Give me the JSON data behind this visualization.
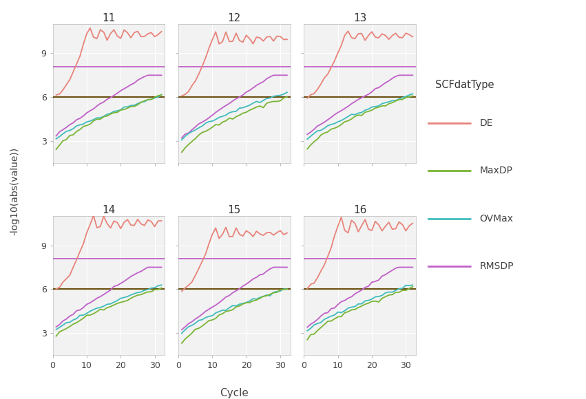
{
  "panels": [
    11,
    12,
    13,
    14,
    15,
    16
  ],
  "n_cycles": 32,
  "ylim": [
    1.5,
    11.0
  ],
  "yticks": [
    3,
    6,
    9
  ],
  "xticks": [
    0,
    10,
    20,
    30
  ],
  "xlabel": "Cycle",
  "ylabel": "-log10(abs(value))",
  "legend_title": "SCFdatType",
  "hline_dark": 6.0,
  "hline_purple": 8.1,
  "colors": {
    "DE": "#E8837A",
    "MaxDP": "#7AB434",
    "OVMax": "#40BCBC",
    "RMSDP": "#C060C8"
  },
  "legend_labels": [
    "DE",
    "MaxDP",
    "OVMax",
    "RMSDP"
  ],
  "background_color": "#FFFFFF",
  "panel_bg": "#F2F2F2",
  "grid_color": "#FFFFFF",
  "hline_dark_color": "#6B5010",
  "DE_data": {
    "panel_params": [
      {
        "start_cycle": 10,
        "peak": 10.3,
        "osc_amp": 0.5,
        "osc_freq": 1.8,
        "osc_decay": 0.06,
        "start_val": 6.0
      },
      {
        "start_cycle": 10,
        "peak": 10.0,
        "osc_amp": 0.6,
        "osc_freq": 2.0,
        "osc_decay": 0.07,
        "start_val": 6.0
      },
      {
        "start_cycle": 12,
        "peak": 10.2,
        "osc_amp": 0.4,
        "osc_freq": 1.8,
        "osc_decay": 0.06,
        "start_val": 6.0
      },
      {
        "start_cycle": 11,
        "peak": 10.5,
        "osc_amp": 0.55,
        "osc_freq": 1.9,
        "osc_decay": 0.05,
        "start_val": 6.0
      },
      {
        "start_cycle": 10,
        "peak": 9.8,
        "osc_amp": 0.5,
        "osc_freq": 2.0,
        "osc_decay": 0.07,
        "start_val": 5.8
      },
      {
        "start_cycle": 10,
        "peak": 10.3,
        "osc_amp": 0.6,
        "osc_freq": 1.8,
        "osc_decay": 0.04,
        "start_val": 6.0
      }
    ]
  },
  "MaxDP_data": {
    "panel_params": [
      {
        "start": 1.8,
        "end": 6.1,
        "power": 0.55
      },
      {
        "start": 1.6,
        "end": 6.0,
        "power": 0.55
      },
      {
        "start": 1.8,
        "end": 6.1,
        "power": 0.55
      },
      {
        "start": 2.4,
        "end": 6.1,
        "power": 0.65
      },
      {
        "start": 1.6,
        "end": 6.05,
        "power": 0.55
      },
      {
        "start": 1.9,
        "end": 6.1,
        "power": 0.55
      }
    ]
  },
  "OVMax_data": {
    "panel_params": [
      {
        "start": 2.85,
        "end": 6.1,
        "power": 0.7
      },
      {
        "start": 2.7,
        "end": 6.3,
        "power": 0.65
      },
      {
        "start": 2.85,
        "end": 6.2,
        "power": 0.7
      },
      {
        "start": 3.0,
        "end": 6.3,
        "power": 0.75
      },
      {
        "start": 2.7,
        "end": 6.0,
        "power": 0.65
      },
      {
        "start": 2.85,
        "end": 6.3,
        "power": 0.7
      }
    ]
  },
  "RMSDP_data": {
    "panel_params": [
      {
        "start": 3.2,
        "end": 8.1,
        "power": 0.9
      },
      {
        "start": 3.0,
        "end": 8.1,
        "power": 0.9
      },
      {
        "start": 3.2,
        "end": 8.1,
        "power": 0.9
      },
      {
        "start": 3.2,
        "end": 8.1,
        "power": 0.9
      },
      {
        "start": 3.0,
        "end": 8.1,
        "power": 0.9
      },
      {
        "start": 3.2,
        "end": 8.1,
        "power": 0.9
      }
    ]
  }
}
